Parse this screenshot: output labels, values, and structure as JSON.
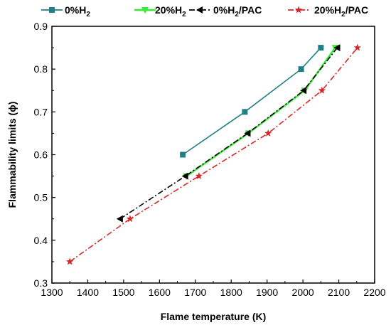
{
  "chart_data": {
    "type": "line",
    "xlabel": "Flame temperature (K)",
    "ylabel": "Flammability limits (ϕ)",
    "xlim": [
      1300,
      2200
    ],
    "ylim": [
      0.3,
      0.9
    ],
    "xticks": [
      "1300",
      "1400",
      "1500",
      "1600",
      "1700",
      "1800",
      "1900",
      "2000",
      "2100",
      "2200"
    ],
    "yticks": [
      "0.3",
      "0.4",
      "0.5",
      "0.6",
      "0.7",
      "0.8",
      "0.9"
    ],
    "grid": false,
    "legend_position": "top",
    "series": [
      {
        "name": "0%H₂",
        "legend_main": "0%H",
        "legend_sub": "2",
        "color": "#1f7f84",
        "marker": "square",
        "line_style": "solid",
        "points": [
          [
            1665,
            0.6
          ],
          [
            1838,
            0.7
          ],
          [
            1995,
            0.8
          ],
          [
            2050,
            0.85
          ]
        ]
      },
      {
        "name": "20%H₂",
        "legend_main": "20%H",
        "legend_sub": "2",
        "color": "#33ee33",
        "marker": "triangle-down",
        "line_style": "solid",
        "points": [
          [
            1675,
            0.55
          ],
          [
            1848,
            0.65
          ],
          [
            2005,
            0.75
          ],
          [
            2090,
            0.85
          ]
        ]
      },
      {
        "name": "0%H₂/PAC",
        "legend_main": "0%H",
        "legend_sub": "2",
        "legend_suffix": "/PAC",
        "color": "#000000",
        "marker": "triangle-left",
        "line_style": "dashdot",
        "points": [
          [
            1490,
            0.45
          ],
          [
            1672,
            0.55
          ],
          [
            1846,
            0.65
          ],
          [
            2002,
            0.75
          ],
          [
            2096,
            0.85
          ]
        ]
      },
      {
        "name": "20%H₂/PAC",
        "legend_main": "20%H",
        "legend_sub": "2",
        "legend_suffix": "/PAC",
        "color": "#d62728",
        "marker": "star",
        "line_style": "dashdot",
        "points": [
          [
            1350,
            0.35
          ],
          [
            1518,
            0.45
          ],
          [
            1710,
            0.55
          ],
          [
            1903,
            0.65
          ],
          [
            2053,
            0.75
          ],
          [
            2152,
            0.85
          ]
        ]
      }
    ]
  }
}
